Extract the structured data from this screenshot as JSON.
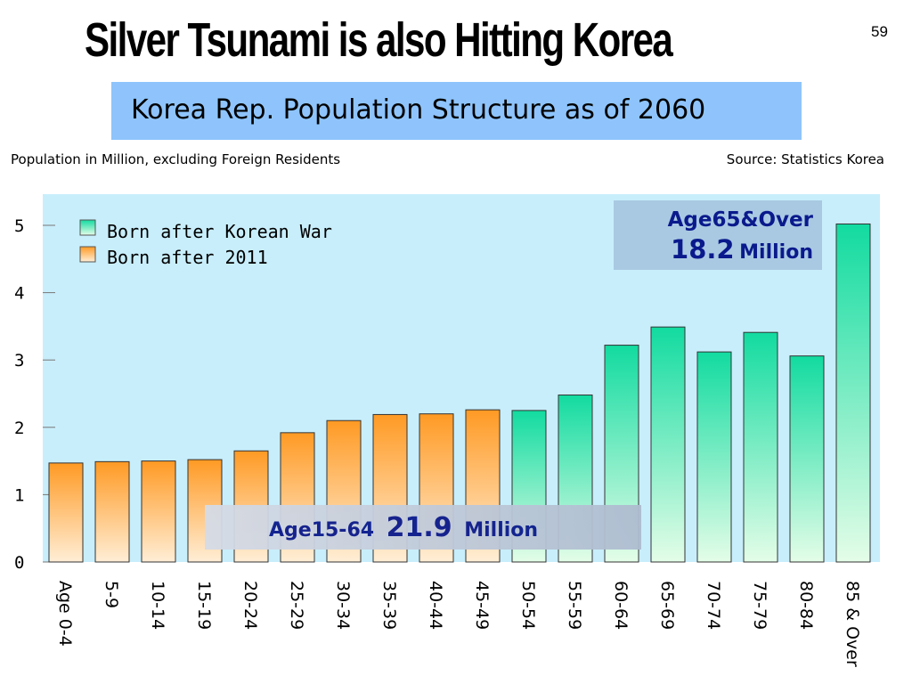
{
  "slide": {
    "title": "Silver Tsunami is also Hitting Korea",
    "page_number": "59"
  },
  "chart_header": {
    "banner": "Korea Rep. Population Structure as of 2060",
    "subtitle_left": "Population in Million, excluding Foreign Residents",
    "subtitle_right": "Source: Statistics Korea"
  },
  "annotations": {
    "age65_label": "Age65&Over",
    "age65_value": "18.2",
    "age65_unit": "Million",
    "age1564_label": "Age15-64",
    "age1564_value": "21.9",
    "age1564_unit": "Million"
  },
  "colors": {
    "plot_background": "#c8eefb",
    "orange_series": "#ff9d2e",
    "green_series": "#1fdc9f"
  },
  "chart_data": {
    "type": "bar",
    "categories": [
      "Age 0-4",
      "5-9",
      "10-14",
      "15-19",
      "20-24",
      "25-29",
      "30-34",
      "35-39",
      "40-44",
      "45-49",
      "50-54",
      "55-59",
      "60-64",
      "65-69",
      "70-74",
      "75-79",
      "80-84",
      "85 & Over"
    ],
    "values": [
      1.47,
      1.49,
      1.5,
      1.52,
      1.65,
      1.92,
      2.1,
      2.19,
      2.2,
      2.26,
      2.25,
      2.48,
      3.22,
      3.49,
      3.12,
      3.41,
      3.06,
      5.02
    ],
    "series": [
      {
        "name": "Born after Korean War",
        "color": "green",
        "range": [
          10,
          17
        ]
      },
      {
        "name": "Born after 2011",
        "color": "orange",
        "range": [
          0,
          9
        ]
      }
    ],
    "yticks": [
      "0",
      "1",
      "2",
      "3",
      "4",
      "5"
    ],
    "ylim": [
      0,
      5.3
    ],
    "grid": false,
    "legend_position": "top-left"
  }
}
